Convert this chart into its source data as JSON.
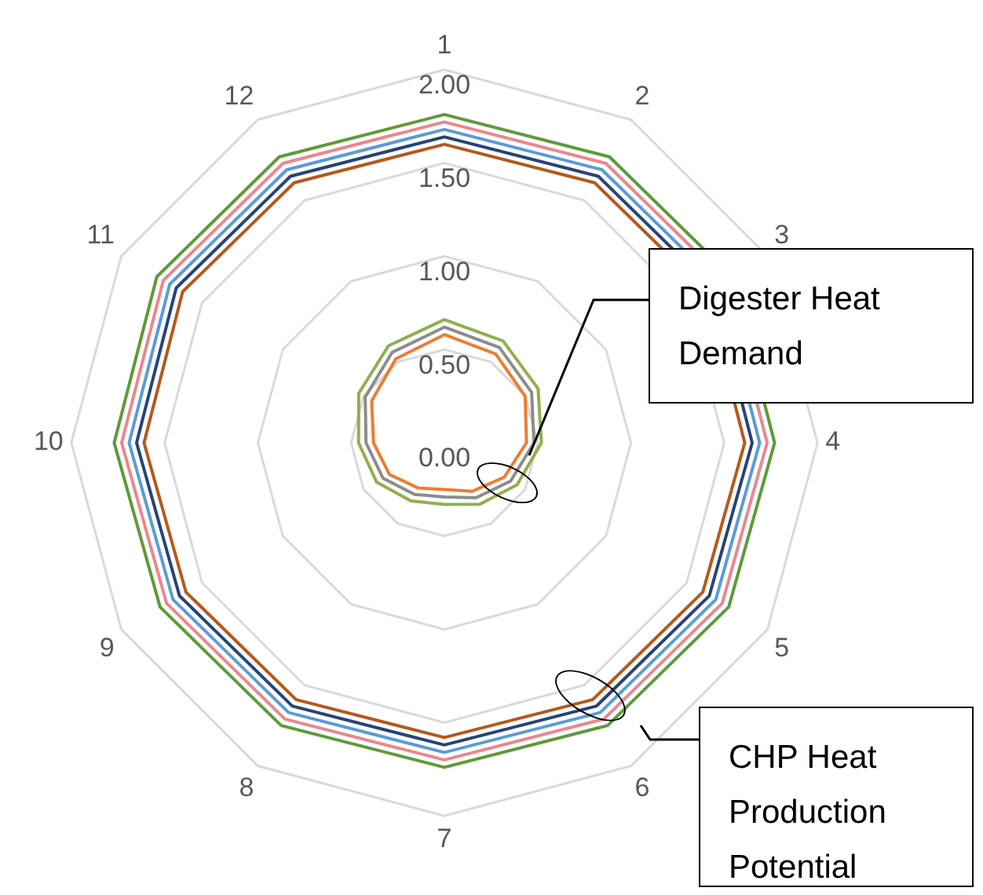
{
  "chart_data": {
    "type": "radar",
    "categories": [
      "1",
      "2",
      "3",
      "4",
      "5",
      "6",
      "7",
      "8",
      "9",
      "10",
      "11",
      "12"
    ],
    "ylim": [
      0,
      2
    ],
    "yticks": [
      {
        "value": 0,
        "label": "0.00"
      },
      {
        "value": 0.5,
        "label": "0.50"
      },
      {
        "value": 1,
        "label": "1.00"
      },
      {
        "value": 1.5,
        "label": "1.50"
      },
      {
        "value": 2,
        "label": "2.00"
      }
    ],
    "grid": true,
    "legend": false,
    "marker": "none",
    "line_style": "solid",
    "annotations": [
      "Digester Heat Demand",
      "CHP Heat Production Potential"
    ],
    "series": [
      {
        "color": "#ed7d31",
        "values": [
          0.58,
          0.55,
          0.5,
          0.44,
          0.37,
          0.3,
          0.25,
          0.28,
          0.34,
          0.38,
          0.45,
          0.52
        ]
      },
      {
        "color": "#8c8c8c",
        "values": [
          0.62,
          0.59,
          0.54,
          0.48,
          0.41,
          0.34,
          0.29,
          0.32,
          0.38,
          0.42,
          0.49,
          0.56
        ]
      },
      {
        "color": "#8fb04f",
        "values": [
          0.66,
          0.63,
          0.58,
          0.52,
          0.45,
          0.38,
          0.33,
          0.36,
          0.42,
          0.46,
          0.53,
          0.6
        ]
      },
      {
        "color": "#b4591c",
        "values": [
          1.6,
          1.61,
          1.62,
          1.61,
          1.6,
          1.59,
          1.58,
          1.59,
          1.6,
          1.61,
          1.62,
          1.61
        ]
      },
      {
        "color": "#264478",
        "values": [
          1.64,
          1.65,
          1.66,
          1.65,
          1.64,
          1.63,
          1.62,
          1.63,
          1.64,
          1.65,
          1.66,
          1.65
        ]
      },
      {
        "color": "#5b9bd5",
        "values": [
          1.68,
          1.69,
          1.7,
          1.69,
          1.68,
          1.67,
          1.66,
          1.67,
          1.68,
          1.69,
          1.7,
          1.69
        ]
      },
      {
        "color": "#e8888f",
        "values": [
          1.72,
          1.73,
          1.74,
          1.73,
          1.72,
          1.71,
          1.7,
          1.71,
          1.72,
          1.73,
          1.74,
          1.73
        ]
      },
      {
        "color": "#5e9a3a",
        "values": [
          1.76,
          1.77,
          1.78,
          1.77,
          1.76,
          1.75,
          1.74,
          1.75,
          1.76,
          1.77,
          1.78,
          1.77
        ]
      }
    ]
  }
}
